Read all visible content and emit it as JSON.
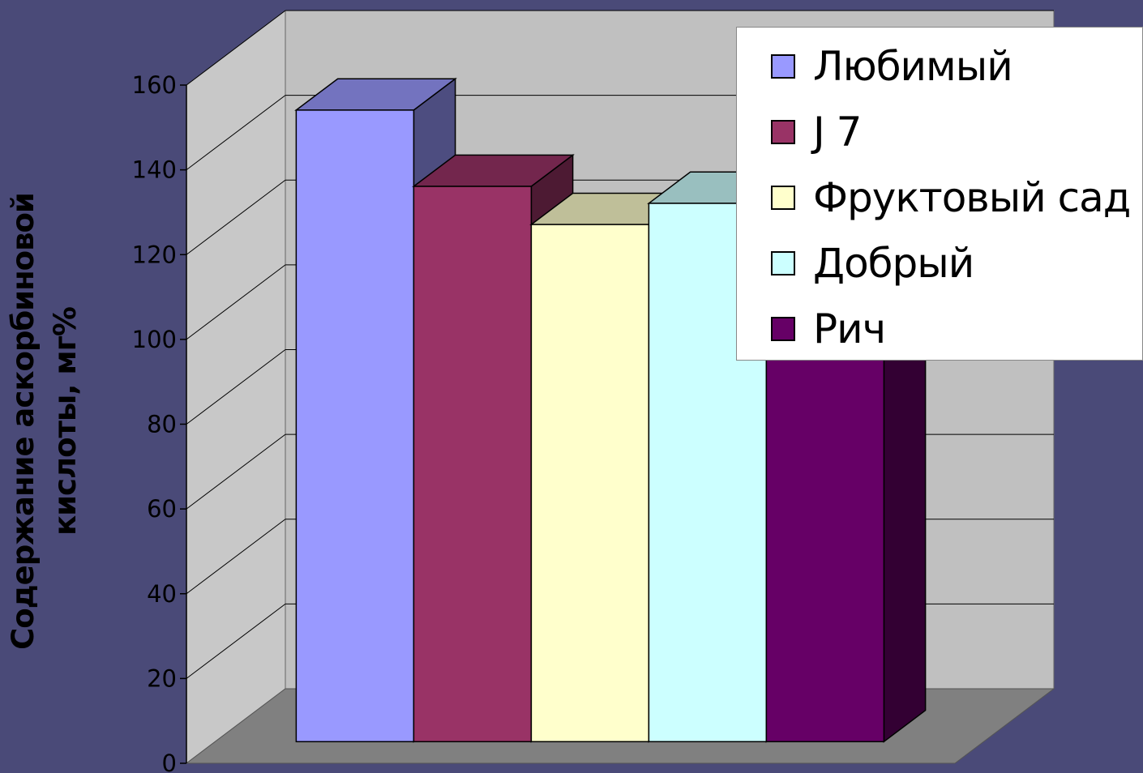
{
  "chart_data": {
    "type": "bar",
    "style": "3d-clustered-column",
    "title": "",
    "xlabel": "",
    "ylabel": "Содержание аскорбиновой кислоты, мг%",
    "ylim": [
      0,
      160
    ],
    "yticks": [
      "0",
      "20",
      "40",
      "60",
      "80",
      "100",
      "120",
      "140",
      "160"
    ],
    "grid": true,
    "legend_position": "top-right",
    "series": [
      {
        "name": "Любимый",
        "values": [
          149
        ],
        "color": "#9999ff"
      },
      {
        "name": "J 7",
        "values": [
          131
        ],
        "color": "#993366"
      },
      {
        "name": "Фруктовый сад",
        "values": [
          122
        ],
        "color": "#ffffcc"
      },
      {
        "name": "Добрый",
        "values": [
          127
        ],
        "color": "#ccffff"
      },
      {
        "name": "Рич",
        "values": [
          133
        ],
        "color": "#660066"
      }
    ]
  },
  "colors": {
    "background": "#4a4a78",
    "back_wall": "#c0c0c0",
    "side_wall": "#c8c8c8",
    "floor": "#808080",
    "gridline": "#000000"
  }
}
